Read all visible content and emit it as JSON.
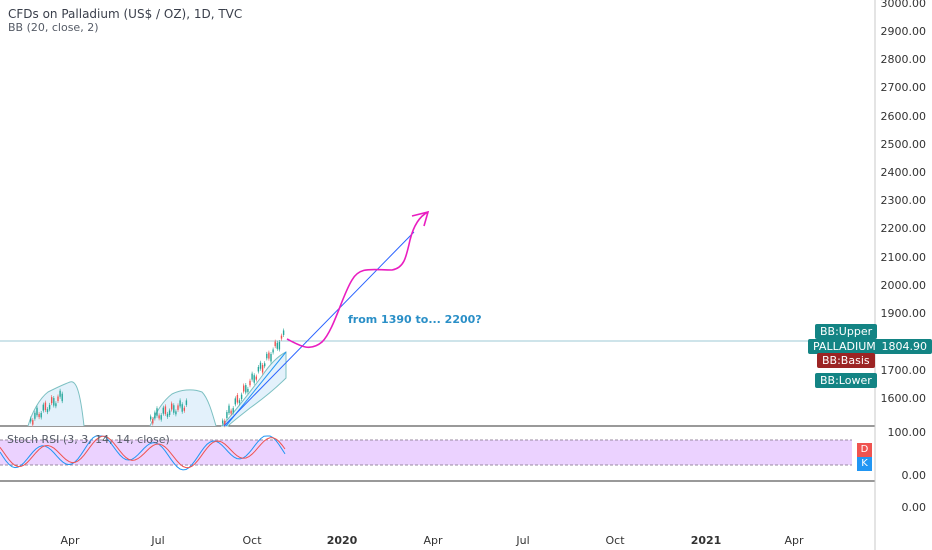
{
  "header": {
    "title": "CFDs on Palladium (US$ / OZ), 1D, TVC",
    "study": "BB (20, close, 2)"
  },
  "rsi": {
    "title": "Stoch RSI (3, 3, 14, 14, close)",
    "d_label": "D",
    "k_label": "K",
    "levels": [
      "100.00",
      "0.00",
      "0.00"
    ]
  },
  "price_axis": {
    "labels": [
      "3000.00",
      "2900.00",
      "2800.00",
      "2700.00",
      "2600.00",
      "2500.00",
      "2400.00",
      "2300.00",
      "2200.00",
      "2100.00",
      "2000.00",
      "1900.00",
      "1700.00",
      "1600.00"
    ]
  },
  "time_axis": {
    "labels": [
      "Apr",
      "Jul",
      "Oct",
      "2020",
      "Apr",
      "Jul",
      "Oct",
      "2021",
      "Apr"
    ]
  },
  "tags": {
    "bb_upper": "BB:Upper",
    "palladium_name": "PALLADIUM",
    "palladium_price": "1804.90",
    "bb_basis": "BB:Basis",
    "bb_lower": "BB:Lower"
  },
  "annotation": "from 1390 to... 2200?",
  "colors": {
    "candle_up": "#26a69a",
    "candle_down": "#ef5350",
    "bb": "#2196f3",
    "rsi_fill": "#e6c7ff",
    "forecast": "#e91ec0",
    "tag_teal": "#138484",
    "tag_red": "#9c2424"
  }
}
